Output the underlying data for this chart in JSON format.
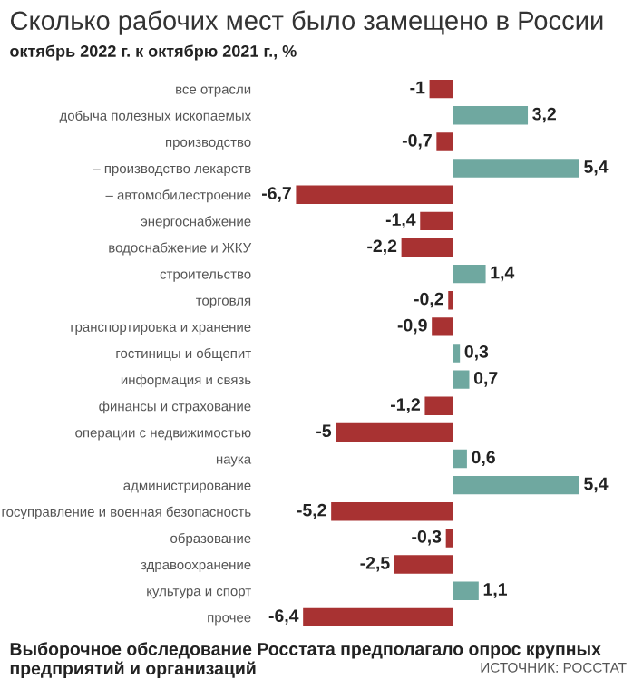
{
  "chart_data": {
    "type": "bar",
    "orientation": "horizontal",
    "title": "Сколько рабочих мест было замещено в России",
    "subtitle": "октябрь 2022 г. к октябрю 2021 г., %",
    "categories": [
      "все отрасли",
      "добыча полезных ископаемых",
      "производство",
      "– производство лекарств",
      "– автомобилестроение",
      "энергоснабжение",
      "водоснабжение и ЖКУ",
      "строительство",
      "торговля",
      "транспортировка и хранение",
      "гостиницы и общепит",
      "информация и связь",
      "финансы и страхование",
      "операции с недвижимостью",
      "наука",
      "администрирование",
      "госуправление и военная безопасность",
      "образование",
      "здравоохранение",
      "культура и спорт",
      "прочее"
    ],
    "values": [
      -1,
      3.2,
      -0.7,
      5.4,
      -6.7,
      -1.4,
      -2.2,
      1.4,
      -0.2,
      -0.9,
      0.3,
      0.7,
      -1.2,
      -5,
      0.6,
      5.4,
      -5.2,
      -0.3,
      -2.5,
      1.1,
      -6.4
    ],
    "value_labels": [
      "-1",
      "3,2",
      "-0,7",
      "5,4",
      "-6,7",
      "-1,4",
      "-2,2",
      "1,4",
      "-0,2",
      "-0,9",
      "0,3",
      "0,7",
      "-1,2",
      "-5",
      "0,6",
      "5,4",
      "-5,2",
      "-0,3",
      "-2,5",
      "1,1",
      "-6,4"
    ],
    "colors": [
      "#a83232",
      "#6fa8a0",
      "#a83232",
      "#6fa8a0",
      "#a83232",
      "#a83232",
      "#a83232",
      "#6fa8a0",
      "#a83232",
      "#a83232",
      "#6fa8a0",
      "#6fa8a0",
      "#a83232",
      "#a83232",
      "#6fa8a0",
      "#6fa8a0",
      "#a83232",
      "#a83232",
      "#a83232",
      "#6fa8a0",
      "#a83232"
    ],
    "grid": false,
    "legend": false,
    "annotations": [
      "Выборочное обследование Росстата предполагало опрос крупных предприятий и организаций",
      "ИСТОЧНИК: РОССТАТ"
    ]
  }
}
